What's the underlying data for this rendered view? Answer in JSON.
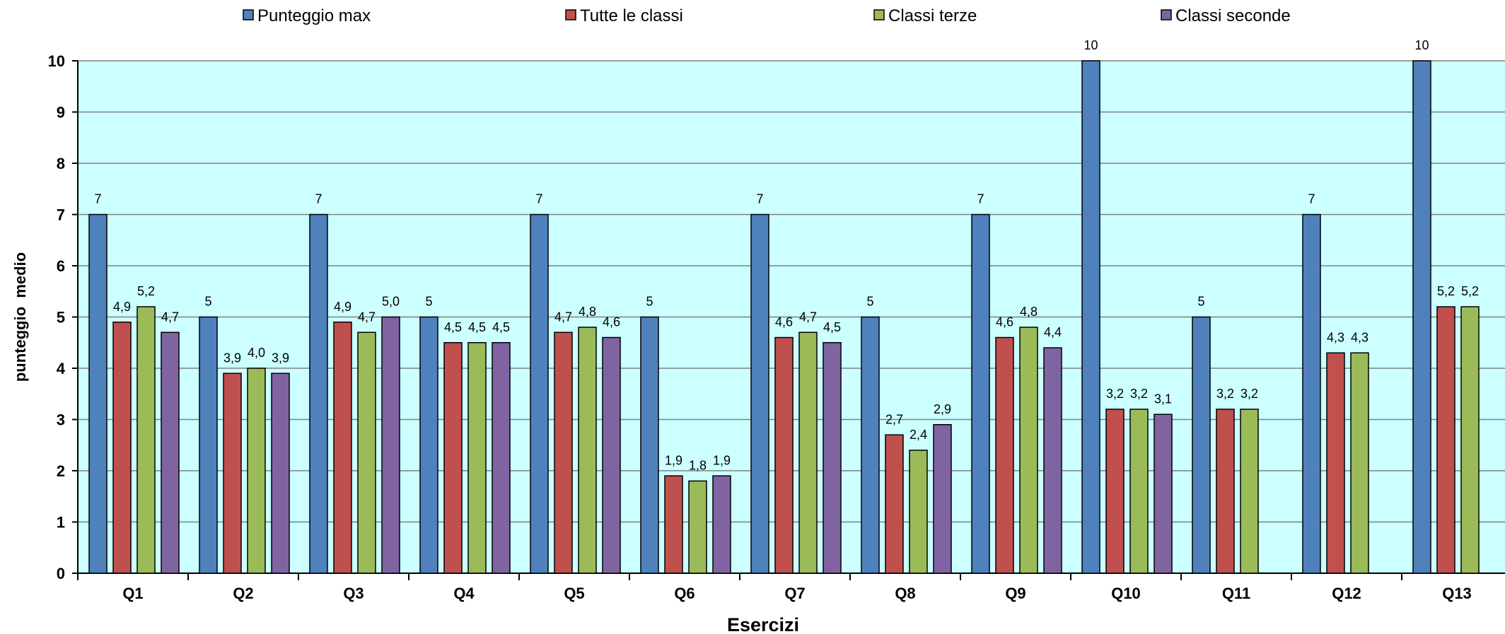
{
  "chart_data": {
    "type": "bar",
    "title": "",
    "xlabel": "Esercizi",
    "ylabel": "punteggio  medio",
    "ylim": [
      0,
      10
    ],
    "yticks": [
      "0",
      "1",
      "2",
      "3",
      "4",
      "5",
      "6",
      "7",
      "8",
      "9",
      "10"
    ],
    "grid": true,
    "legend_position": "top",
    "plot_background": "#ccffff",
    "categories": [
      "Q1",
      "Q2",
      "Q3",
      "Q4",
      "Q5",
      "Q6",
      "Q7",
      "Q8",
      "Q9",
      "Q10",
      "Q11",
      "Q12",
      "Q13"
    ],
    "series": [
      {
        "name": "Punteggio max",
        "color": "#4f81bd",
        "values": [
          7,
          5,
          7,
          5,
          7,
          5,
          7,
          5,
          7,
          10,
          5,
          7,
          10
        ],
        "labels": [
          "7",
          "5",
          "7",
          "5",
          "7",
          "5",
          "7",
          "5",
          "7",
          "10",
          "5",
          "7",
          "10"
        ]
      },
      {
        "name": "Tutte le classi",
        "color": "#c0504d",
        "values": [
          4.9,
          3.9,
          4.9,
          4.5,
          4.7,
          1.9,
          4.6,
          2.7,
          4.6,
          3.2,
          3.2,
          4.3,
          5.2
        ],
        "labels": [
          "4,9",
          "3,9",
          "4,9",
          "4,5",
          "4,7",
          "1,9",
          "4,6",
          "2,7",
          "4,6",
          "3,2",
          "3,2",
          "4,3",
          "5,2"
        ]
      },
      {
        "name": "Classi terze",
        "color": "#9bbb59",
        "values": [
          5.2,
          4.0,
          4.7,
          4.5,
          4.8,
          1.8,
          4.7,
          2.4,
          4.8,
          3.2,
          3.2,
          4.3,
          5.2
        ],
        "labels": [
          "5,2",
          "4,0",
          "4,7",
          "4,5",
          "4,8",
          "1,8",
          "4,7",
          "2,4",
          "4,8",
          "3,2",
          "3,2",
          "4,3",
          "5,2"
        ]
      },
      {
        "name": "Classi seconde",
        "color": "#8064a2",
        "values": [
          4.7,
          3.9,
          5.0,
          4.5,
          4.6,
          1.9,
          4.5,
          2.9,
          4.4,
          3.1,
          null,
          null,
          null
        ],
        "labels": [
          "4,7",
          "3,9",
          "5,0",
          "4,5",
          "4,6",
          "1,9",
          "4,5",
          "2,9",
          "4,4",
          "3,1",
          null,
          null,
          null
        ]
      }
    ]
  }
}
